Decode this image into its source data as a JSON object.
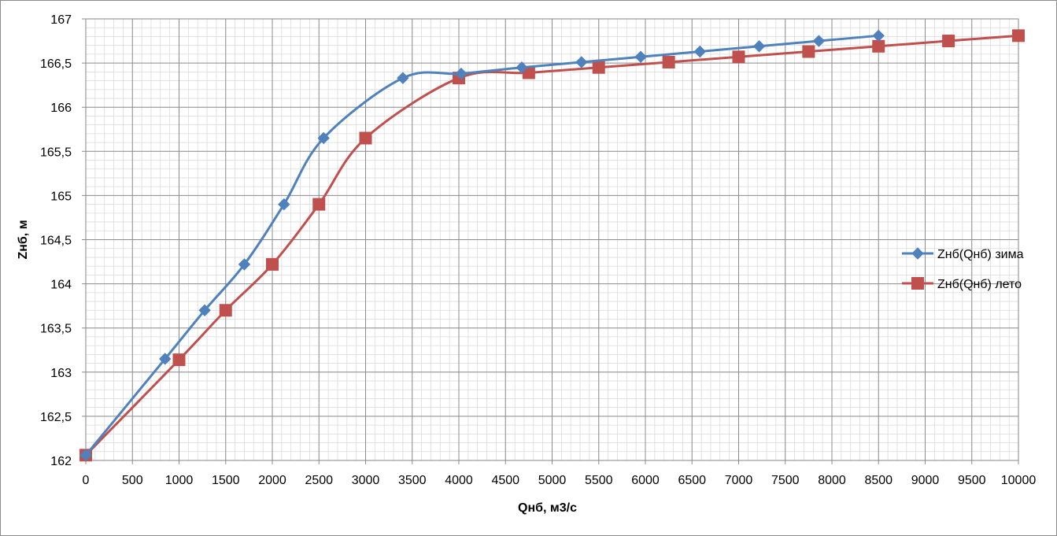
{
  "chart_data": {
    "type": "line",
    "title": "",
    "xlabel": "Qнб, м3/с",
    "ylabel": "Zнб, м",
    "xlim": [
      0,
      10000
    ],
    "ylim": [
      162,
      167
    ],
    "x_major_step": 500,
    "y_major_step": 0.5,
    "x_minor_step": 100,
    "y_minor_step": 0.1,
    "grid": true,
    "smooth": true,
    "legend_position": "right",
    "x_tick_labels": [
      "0",
      "500",
      "1000",
      "1500",
      "2000",
      "2500",
      "3000",
      "3500",
      "4000",
      "4500",
      "5000",
      "5500",
      "6000",
      "6500",
      "7000",
      "7500",
      "8000",
      "8500",
      "9000",
      "9500",
      "10000"
    ],
    "y_tick_labels": [
      "162",
      "162,5",
      "163",
      "163,5",
      "164",
      "164,5",
      "165",
      "165,5",
      "166",
      "166,5",
      "167"
    ],
    "series": [
      {
        "name": "Zнб(Qнб) зима",
        "color": "#4f81bd",
        "marker": "diamond",
        "points": [
          [
            0,
            162.06
          ],
          [
            850,
            163.15
          ],
          [
            1275,
            163.7
          ],
          [
            1700,
            164.22
          ],
          [
            2125,
            164.9
          ],
          [
            2550,
            165.65
          ],
          [
            3400,
            166.33
          ],
          [
            4025,
            166.38
          ],
          [
            4675,
            166.45
          ],
          [
            5315,
            166.51
          ],
          [
            5950,
            166.57
          ],
          [
            6585,
            166.63
          ],
          [
            7220,
            166.69
          ],
          [
            7860,
            166.75
          ],
          [
            8500,
            166.81
          ]
        ]
      },
      {
        "name": "Zнб(Qнб) лето",
        "color": "#c0504d",
        "marker": "square",
        "points": [
          [
            0,
            162.06
          ],
          [
            1000,
            163.14
          ],
          [
            1500,
            163.7
          ],
          [
            2000,
            164.22
          ],
          [
            2500,
            164.9
          ],
          [
            3000,
            165.65
          ],
          [
            4000,
            166.33
          ],
          [
            4750,
            166.39
          ],
          [
            5500,
            166.45
          ],
          [
            6250,
            166.51
          ],
          [
            7000,
            166.57
          ],
          [
            7750,
            166.63
          ],
          [
            8500,
            166.69
          ],
          [
            9250,
            166.75
          ],
          [
            10000,
            166.81
          ]
        ]
      }
    ]
  }
}
